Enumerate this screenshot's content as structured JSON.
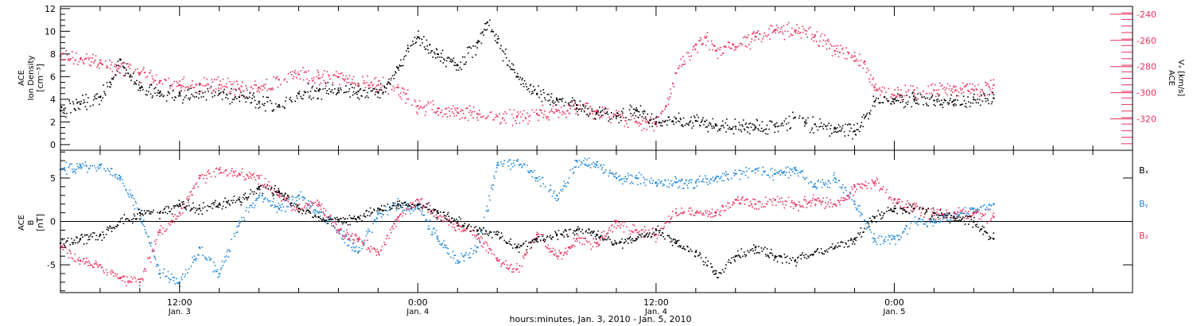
{
  "colors": {
    "black": "#000000",
    "blue": "#1f86d8",
    "red": "#e8315e",
    "frame": "#000000"
  },
  "time_axis": {
    "range_hours": [
      0,
      54
    ],
    "major_ticks": [
      {
        "hour": 6,
        "line1": "12:00",
        "line2": "Jan. 3"
      },
      {
        "hour": 18,
        "line1": "0:00",
        "line2": "Jan. 4"
      },
      {
        "hour": 30,
        "line1": "12:00",
        "line2": "Jan. 4"
      },
      {
        "hour": 42,
        "line1": "0:00",
        "line2": "Jan. 5"
      }
    ],
    "xlabel": "hours:minutes, Jan.  3, 2010 - Jan.  5, 2010"
  },
  "chart_data": [
    {
      "type": "scatter",
      "panel": "top",
      "ylabel_left_lines": [
        "ACE",
        "Ion Density",
        "[cm⁻³]"
      ],
      "ylabel_right_lines": [
        "ACE",
        "Vₓ [km/s]"
      ],
      "ylim_left": [
        -0.5,
        12.2
      ],
      "ylim_right": [
        -344,
        -234
      ],
      "left_ticks": [
        "0",
        "2",
        "4",
        "6",
        "8",
        "10",
        "12"
      ],
      "right_ticks": [
        "-240",
        "-260",
        "-280",
        "-300",
        "-320"
      ],
      "series": [
        {
          "axis": "left",
          "color": "black",
          "x": [
            0,
            1,
            2,
            2.5,
            3,
            3.2,
            3.5,
            4,
            5,
            6,
            7,
            8,
            9,
            10,
            11,
            12,
            13,
            14,
            15,
            16,
            16.5,
            17,
            17.5,
            18,
            19,
            20,
            21,
            21.5,
            22,
            23,
            24,
            25,
            26,
            27,
            28,
            29,
            30,
            31,
            32,
            33,
            34,
            35,
            36,
            37,
            37.5,
            38,
            39,
            40,
            41,
            41.5,
            42,
            43,
            44,
            45,
            46,
            47
          ],
          "y": [
            3.0,
            3.6,
            4.2,
            5.5,
            7.5,
            6.8,
            6.0,
            5.0,
            4.6,
            4.5,
            4.7,
            4.5,
            4.2,
            3.8,
            3.5,
            4.5,
            4.8,
            4.8,
            4.7,
            4.6,
            5.5,
            6.8,
            8.5,
            9.5,
            8.0,
            7.0,
            9.0,
            10.8,
            9.0,
            6.0,
            4.5,
            4.0,
            3.5,
            2.8,
            2.5,
            3.0,
            2.0,
            2.3,
            2.1,
            1.8,
            1.6,
            1.5,
            1.6,
            2.4,
            2.0,
            1.8,
            1.5,
            1.2,
            3.8,
            4.2,
            4.0,
            4.0,
            3.9,
            3.9,
            4.0,
            4.1
          ]
        },
        {
          "axis": "right",
          "color": "red",
          "x": [
            0,
            1,
            2,
            3,
            4,
            5,
            6,
            7,
            8,
            9,
            10,
            11,
            12,
            13,
            14,
            15,
            16,
            17,
            18,
            19,
            20,
            21,
            22,
            23,
            24,
            25,
            26,
            27,
            28,
            29,
            30,
            30.5,
            31,
            32,
            32.5,
            33,
            34,
            35,
            36,
            37,
            38,
            39,
            40,
            40.5,
            41,
            42,
            43,
            44,
            45,
            46,
            47
          ],
          "y": [
            -272,
            -274,
            -277,
            -280,
            -285,
            -291,
            -294,
            -293,
            -294,
            -297,
            -296,
            -290,
            -286,
            -289,
            -288,
            -293,
            -294,
            -296,
            -310,
            -312,
            -315,
            -316,
            -318,
            -318,
            -316,
            -314,
            -312,
            -314,
            -318,
            -322,
            -324,
            -310,
            -285,
            -263,
            -258,
            -268,
            -265,
            -257,
            -252,
            -253,
            -256,
            -268,
            -272,
            -276,
            -296,
            -302,
            -298,
            -298,
            -295,
            -298,
            -294
          ]
        }
      ]
    },
    {
      "type": "scatter",
      "panel": "bottom",
      "ylabel_left_lines": [
        "ACE",
        "B",
        "[nT]"
      ],
      "ylim": [
        -8.2,
        8.2
      ],
      "ticks": [
        "5",
        "0",
        "-5"
      ],
      "zero_line": true,
      "legend_placement": "right",
      "legend": [
        {
          "label": "Bₓ",
          "color": "black"
        },
        {
          "label": "Bᵧ",
          "color": "blue"
        },
        {
          "label": "B₂",
          "color": "red"
        }
      ],
      "series": [
        {
          "name": "Bₓ",
          "color": "black",
          "x": [
            0,
            1,
            2,
            3,
            4,
            5,
            6,
            7,
            8,
            9,
            10,
            11,
            12,
            13,
            14,
            15,
            16,
            17,
            18,
            19,
            20,
            21,
            22,
            23,
            24,
            25,
            26,
            27,
            28,
            29,
            30,
            31,
            32,
            33,
            34,
            35,
            36,
            37,
            38,
            39,
            40,
            41,
            42,
            43,
            44,
            45,
            46,
            47
          ],
          "y": [
            -2.5,
            -2.0,
            -1.5,
            0,
            1.0,
            1.0,
            2.0,
            1.5,
            2.0,
            2.5,
            4.0,
            3.5,
            1.5,
            0.5,
            0,
            0.5,
            1.5,
            2.0,
            2.0,
            1.0,
            0,
            -1.0,
            -1.5,
            -3.0,
            -2.0,
            -1.5,
            -1.0,
            -1.5,
            -2.5,
            -2.0,
            -1.0,
            -2.5,
            -3.5,
            -6.0,
            -4.0,
            -3.0,
            -4.0,
            -4.5,
            -3.5,
            -3.0,
            -2.0,
            0.5,
            1.5,
            1.5,
            1.0,
            0.5,
            0,
            -2.0
          ]
        },
        {
          "name": "Bᵧ",
          "color": "blue",
          "x": [
            0,
            1,
            2,
            3,
            4,
            5,
            6,
            7,
            8,
            9,
            10,
            11,
            12,
            13,
            14,
            15,
            16,
            17,
            18,
            19,
            20,
            21,
            22,
            23,
            24,
            25,
            26,
            27,
            28,
            29,
            30,
            31,
            32,
            33,
            34,
            35,
            36,
            37,
            38,
            39,
            40,
            41,
            42,
            43,
            44,
            45,
            46,
            47
          ],
          "y": [
            6.0,
            6.5,
            6.5,
            5.0,
            1.0,
            -6.0,
            -7.0,
            -3.0,
            -6.0,
            0,
            3.0,
            1.5,
            3.0,
            1.0,
            -1.0,
            -3.5,
            1.0,
            2.0,
            1.5,
            -2.0,
            -4.5,
            -3.0,
            6.5,
            7.0,
            5.0,
            3.0,
            7.0,
            6.5,
            5.0,
            5.0,
            4.5,
            4.5,
            4.5,
            5.0,
            5.5,
            6.0,
            5.5,
            6.0,
            4.0,
            5.0,
            2.0,
            -2.0,
            -2.0,
            0,
            0,
            1.0,
            1.5,
            2.0
          ]
        },
        {
          "name": "B₂",
          "color": "red",
          "x": [
            0,
            1,
            2,
            3,
            4,
            5,
            6,
            7,
            8,
            9,
            10,
            11,
            12,
            13,
            14,
            15,
            16,
            17,
            18,
            19,
            20,
            21,
            22,
            23,
            24,
            25,
            26,
            27,
            28,
            29,
            30,
            31,
            32,
            33,
            34,
            35,
            36,
            37,
            38,
            39,
            40,
            41,
            42,
            43,
            44,
            45,
            46,
            47
          ],
          "y": [
            -3.0,
            -4.5,
            -5.0,
            -6.5,
            -7.0,
            -1.0,
            1.0,
            5.0,
            6.0,
            5.5,
            5.0,
            3.0,
            1.5,
            2.0,
            -1.0,
            -2.0,
            -3.5,
            0.5,
            2.5,
            0.5,
            -0.5,
            -1.5,
            -4.5,
            -5.5,
            -1.5,
            -4.0,
            -2.0,
            -2.5,
            0,
            -1.0,
            -1.5,
            1.0,
            1.0,
            1.0,
            2.5,
            2.0,
            2.5,
            2.0,
            2.5,
            2.0,
            4.0,
            4.5,
            2.5,
            1.5,
            1.0,
            1.0,
            1.0,
            0.5
          ]
        }
      ]
    }
  ]
}
